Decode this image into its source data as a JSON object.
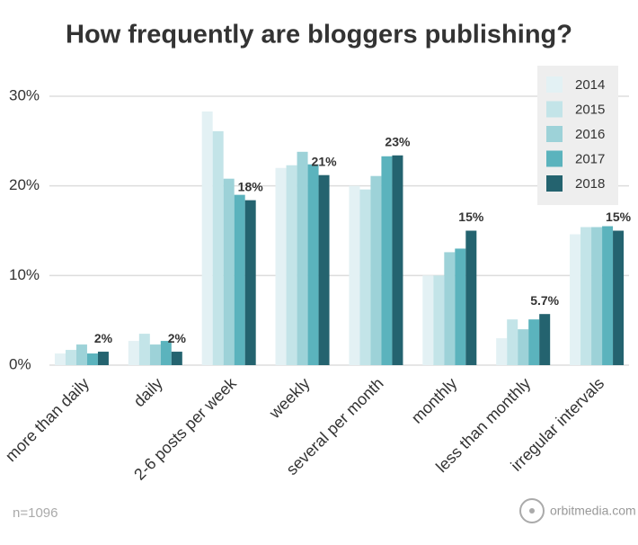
{
  "chart_data": {
    "type": "bar",
    "title": "How frequently are bloggers publishing?",
    "categories": [
      "more than daily",
      "daily",
      "2-6 posts per week",
      "weekly",
      "several per month",
      "monthly",
      "less than monthly",
      "irregular intervals"
    ],
    "series": [
      {
        "name": "2014",
        "color": "#e3f1f4",
        "values": [
          1.3,
          2.7,
          28.3,
          22,
          20,
          10,
          3,
          14.6
        ]
      },
      {
        "name": "2015",
        "color": "#c3e4e8",
        "values": [
          1.7,
          3.5,
          26.1,
          22.3,
          19.6,
          10,
          5.1,
          15.4
        ]
      },
      {
        "name": "2016",
        "color": "#9dd2d8",
        "values": [
          2.3,
          2.3,
          20.8,
          23.8,
          21.1,
          12.6,
          4,
          15.4
        ]
      },
      {
        "name": "2017",
        "color": "#5bb3bd",
        "values": [
          1.3,
          2.7,
          19,
          22.4,
          23.3,
          13,
          5.1,
          15.5
        ]
      },
      {
        "name": "2018",
        "color": "#24636f",
        "values": [
          1.5,
          1.5,
          18.4,
          21.2,
          23.4,
          15,
          5.7,
          15
        ],
        "value_labels": [
          "2%",
          "2%",
          "18%",
          "21%",
          "23%",
          "15%",
          "5.7%",
          "15%"
        ]
      }
    ],
    "ylim": [
      0,
      30
    ],
    "yticks": [
      {
        "value": 0,
        "label": "0%"
      },
      {
        "value": 10,
        "label": "10%"
      },
      {
        "value": 20,
        "label": "20%"
      },
      {
        "value": 30,
        "label": "30%"
      }
    ],
    "grid": true,
    "legend": "top-right",
    "footnote": "n=1096",
    "source": "orbitmedia.com"
  }
}
